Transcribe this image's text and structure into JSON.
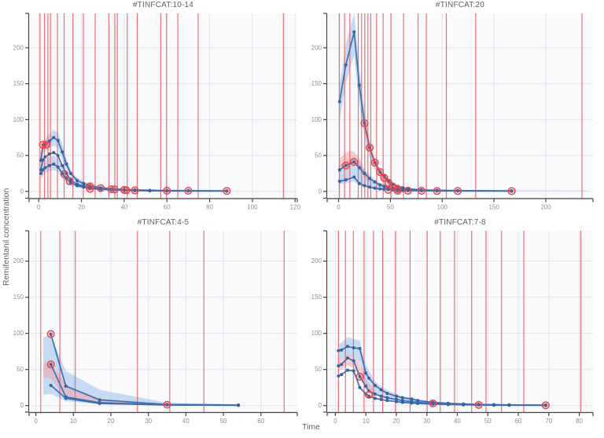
{
  "figure": {
    "ylabel": "Remifentanil concentration",
    "xlabel": "Time"
  },
  "colors": {
    "line_blue": "#3d6fae",
    "marker_blue": "#35649f",
    "ribbon_blue": "#8fbbea",
    "ribbon_pink": "#f2a0a4",
    "vline_red": "#ec5f63",
    "obs_red": "#e8474d",
    "red_line": "#e0393f",
    "grid": "#e4e5e9",
    "panel_bg": "#fafafc",
    "axis": "#444444",
    "tick_label": "#8a8f9a",
    "title": "#5e5e66"
  },
  "chart_data": [
    {
      "type": "line",
      "title": "#TINFCAT:10-14",
      "xlim": [
        -4.5,
        121
      ],
      "ylim": [
        -9.5,
        248
      ],
      "xticks": [
        0,
        20,
        40,
        60,
        80,
        100,
        120
      ],
      "yticks": [
        0,
        50,
        100,
        150,
        200
      ],
      "grid": true,
      "vlines": [
        0.6,
        2.7,
        4.3,
        5.5,
        8.8,
        11.9,
        16,
        20.9,
        26.4,
        32.8,
        35.6,
        36.8,
        41.4,
        46.1,
        57.1,
        59.8,
        65.1,
        74.6,
        114.5
      ],
      "ribbons": [
        {
          "color": "blue",
          "x": [
            1,
            2,
            3,
            5,
            7,
            9,
            11,
            13,
            15,
            18,
            21,
            24,
            29,
            34,
            40,
            45,
            52,
            60,
            70,
            88
          ],
          "upper": [
            52,
            70,
            74,
            80,
            86,
            82,
            66,
            46,
            30,
            19,
            14,
            11,
            7,
            5,
            3.5,
            3,
            2.5,
            2,
            1.5,
            1.2
          ],
          "lower": [
            33,
            52,
            56,
            60,
            64,
            60,
            44,
            30,
            19,
            11,
            8,
            6,
            4,
            2.5,
            1.5,
            1,
            0.8,
            0.5,
            0.4,
            0.3
          ]
        },
        {
          "color": "blue",
          "x": [
            1,
            2,
            3,
            5,
            7,
            9,
            11,
            13,
            15,
            18,
            21,
            24,
            29,
            34,
            40
          ],
          "upper": [
            33,
            40,
            44,
            48,
            50,
            46,
            34,
            24,
            16,
            11,
            8,
            6,
            4,
            3,
            2
          ],
          "lower": [
            18,
            22,
            25,
            28,
            30,
            27,
            19,
            13,
            8,
            5,
            4,
            3,
            2,
            1.2,
            0.8
          ]
        }
      ],
      "series": [
        {
          "name": "upper quantile",
          "x": [
            1,
            2,
            3,
            5,
            7,
            9,
            11,
            13,
            15,
            18,
            21,
            24,
            29,
            34,
            40,
            45,
            52,
            60,
            70,
            88
          ],
          "y": [
            43,
            65,
            65,
            70,
            75,
            71,
            55,
            38,
            25,
            15,
            11,
            8,
            5,
            3.5,
            2.5,
            2,
            1.5,
            1.2,
            1,
            0.8
          ]
        },
        {
          "name": "median",
          "x": [
            1,
            2,
            3,
            5,
            7,
            9,
            11,
            13,
            15,
            18,
            21,
            24,
            29,
            34,
            40,
            45,
            52,
            60,
            70,
            88
          ],
          "y": [
            30,
            44,
            48,
            52,
            54,
            50,
            36,
            25,
            16,
            10,
            7.5,
            5.5,
            3.5,
            2.5,
            1.8,
            1.4,
            1,
            0.8,
            0.6,
            0.5
          ]
        },
        {
          "name": "lower quantile",
          "x": [
            1,
            2,
            3,
            5,
            7,
            9,
            11,
            13,
            15,
            18,
            21,
            24,
            29,
            34,
            40,
            45,
            52,
            60,
            70,
            88
          ],
          "y": [
            25,
            30,
            33,
            36,
            38,
            34,
            25,
            18,
            12,
            8,
            6,
            4,
            3,
            2,
            1.5,
            1,
            0.8,
            0.6,
            0.5,
            0.4
          ]
        }
      ],
      "red_series": null,
      "observations": [
        [
          2,
          65
        ],
        [
          3.5,
          65
        ],
        [
          12,
          24
        ],
        [
          14.5,
          14
        ],
        [
          24,
          7
        ],
        [
          24,
          3.5
        ],
        [
          29,
          4.5
        ],
        [
          34,
          3
        ],
        [
          35.5,
          2.7
        ],
        [
          40,
          2
        ],
        [
          41,
          1.7
        ],
        [
          45,
          1.4
        ],
        [
          60,
          1
        ],
        [
          70,
          0.8
        ],
        [
          88,
          0.5
        ]
      ]
    },
    {
      "type": "line",
      "title": "#TINFCAT:20",
      "xlim": [
        -11,
        245.5
      ],
      "ylim": [
        -9.5,
        248
      ],
      "xticks": [
        0,
        50,
        100,
        150,
        200
      ],
      "yticks": [
        0,
        50,
        100,
        150,
        200
      ],
      "grid": true,
      "vlines": [
        0.8,
        5.8,
        10.9,
        19,
        22.2,
        25.3,
        28.3,
        31.1,
        36.7,
        43,
        50.6,
        62.7,
        76.7,
        84.7,
        104,
        132.3,
        234.9
      ],
      "ribbons": [
        {
          "color": "blue",
          "x": [
            1,
            7,
            15,
            20,
            25,
            30,
            35,
            40,
            44,
            48,
            52,
            57,
            62,
            67,
            80,
            95,
            115,
            167,
            240
          ],
          "upper": [
            148,
            205,
            248,
            172,
            112,
            72,
            47,
            32,
            25,
            18,
            13,
            9,
            7,
            5.5,
            3,
            2.5,
            2,
            1.5,
            1.2
          ],
          "lower": [
            98,
            150,
            190,
            122,
            75,
            47,
            30,
            20,
            15,
            11,
            8,
            5,
            4,
            3,
            1.5,
            1,
            0.8,
            0.4,
            0.2
          ]
        },
        {
          "color": "blue",
          "x": [
            1,
            7,
            15,
            20,
            25,
            30,
            35,
            40,
            48,
            57
          ],
          "upper": [
            36,
            42,
            48,
            40,
            31,
            23,
            17,
            12,
            7,
            4
          ],
          "lower": [
            10,
            11,
            14,
            8,
            6,
            4,
            3,
            2,
            1.5,
            1
          ]
        },
        {
          "color": "pink",
          "x": [
            1,
            7,
            11,
            15,
            20,
            25,
            30
          ],
          "upper": [
            46,
            53,
            57,
            55,
            46,
            30,
            20
          ],
          "lower": [
            32,
            37,
            40,
            38,
            30,
            19,
            12
          ]
        }
      ],
      "series": [
        {
          "name": "upper quantile",
          "x": [
            1,
            7,
            15,
            20,
            25,
            30,
            35,
            40,
            44,
            48,
            52,
            57,
            62,
            67,
            80,
            95,
            115,
            167
          ],
          "y": [
            125,
            176,
            222,
            148,
            95,
            61,
            40,
            27,
            21,
            15,
            10,
            7,
            5,
            3.5,
            2,
            1.5,
            1,
            0.8
          ]
        },
        {
          "name": "median",
          "x": [
            1,
            7,
            15,
            20,
            25,
            30,
            35,
            40,
            44,
            48,
            52,
            57,
            62,
            67,
            80,
            95,
            115,
            167
          ],
          "y": [
            30,
            36,
            41,
            33,
            25,
            18,
            13,
            9,
            7,
            5,
            4,
            3,
            2.5,
            2,
            1.5,
            1,
            0.8,
            0.5
          ]
        },
        {
          "name": "lower quantile",
          "x": [
            1,
            7,
            15,
            20,
            25,
            30,
            35,
            40,
            44,
            48,
            52,
            57,
            62,
            67,
            80,
            95,
            115,
            167
          ],
          "y": [
            14,
            16,
            20,
            11,
            8,
            6,
            4.5,
            3.5,
            3,
            2.5,
            2,
            1.5,
            1.2,
            1,
            0.8,
            0.6,
            0.5,
            0.4
          ]
        }
      ],
      "red_series": {
        "x": [
          25,
          30,
          35,
          40,
          44,
          48,
          52,
          57
        ],
        "y": [
          95,
          61,
          40,
          27,
          19,
          12,
          7,
          4
        ]
      },
      "observations": [
        [
          7,
          36
        ],
        [
          15,
          41
        ],
        [
          25,
          95
        ],
        [
          30,
          61
        ],
        [
          35,
          40
        ],
        [
          40,
          27
        ],
        [
          44,
          19
        ],
        [
          48,
          12
        ],
        [
          48,
          2
        ],
        [
          52,
          7
        ],
        [
          57,
          3
        ],
        [
          57,
          0.8
        ],
        [
          67,
          1
        ],
        [
          80,
          0.8
        ],
        [
          95,
          0.6
        ],
        [
          115,
          0.5
        ],
        [
          167,
          0.4
        ]
      ]
    },
    {
      "type": "line",
      "title": "#TINFCAT:4-5",
      "xlim": [
        -1.8,
        69.7
      ],
      "ylim": [
        -9,
        242
      ],
      "xticks": [
        0,
        10,
        20,
        30,
        40,
        50,
        60
      ],
      "yticks": [
        0,
        50,
        100,
        150,
        200
      ],
      "grid": true,
      "vlines": [
        1.3,
        6.4,
        10.5,
        27.1,
        35.7,
        44.8,
        66.2
      ],
      "ribbons": [
        {
          "color": "blue",
          "x": [
            2,
            4,
            8,
            17,
            35,
            54
          ],
          "upper": [
            95,
            97,
            48,
            22,
            4,
            1.5
          ],
          "lower": [
            15,
            16,
            6,
            2,
            0.3,
            0.1
          ]
        },
        {
          "color": "pink",
          "x": [
            2,
            4,
            8,
            17,
            35
          ],
          "upper": [
            60,
            60,
            28,
            10,
            1.5
          ],
          "lower": [
            38,
            38,
            10,
            3,
            0.2
          ]
        }
      ],
      "series": [
        {
          "name": "upper quantile",
          "x": [
            4,
            8,
            17,
            35,
            54
          ],
          "y": [
            99,
            27,
            8,
            1.5,
            0.8
          ]
        },
        {
          "name": "median",
          "x": [
            4,
            8,
            17,
            35,
            54
          ],
          "y": [
            57,
            12,
            4,
            1,
            0.5
          ]
        },
        {
          "name": "lower quantile",
          "x": [
            4,
            8,
            17,
            35,
            54
          ],
          "y": [
            28,
            10,
            3,
            0.8,
            0.3
          ]
        }
      ],
      "red_series": null,
      "observations": [
        [
          4,
          99
        ],
        [
          4,
          57
        ],
        [
          35,
          1.2
        ]
      ]
    },
    {
      "type": "line",
      "title": "#TINFCAT:7-8",
      "xlim": [
        -2.7,
        84.5
      ],
      "ylim": [
        -9,
        242
      ],
      "xticks": [
        0,
        10,
        20,
        30,
        40,
        50,
        60,
        70,
        80
      ],
      "yticks": [
        0,
        50,
        100,
        150,
        200
      ],
      "grid": true,
      "vlines": [
        1,
        3.3,
        5.9,
        9.4,
        12.5,
        15.5,
        19.7,
        24.5,
        30.1,
        34.4,
        39.1,
        44.7,
        49.4,
        54.5,
        61.8,
        80.5
      ],
      "ribbons": [
        {
          "color": "blue",
          "x": [
            1,
            2,
            4,
            6,
            8,
            10,
            13,
            17,
            22,
            27,
            32,
            42,
            57,
            69
          ],
          "upper": [
            85,
            87,
            95,
            92,
            90,
            56,
            33,
            21,
            13,
            9,
            6,
            3,
            1.5,
            1
          ],
          "lower": [
            62,
            64,
            70,
            67,
            60,
            28,
            15,
            8,
            5,
            3,
            2,
            1,
            0.4,
            0.2
          ]
        },
        {
          "color": "pink",
          "x": [
            1,
            2,
            4,
            6,
            8,
            10,
            13
          ],
          "upper": [
            62,
            64,
            72,
            68,
            58,
            36,
            20
          ],
          "lower": [
            48,
            50,
            56,
            52,
            40,
            22,
            11
          ]
        }
      ],
      "series": [
        {
          "name": "upper quantile",
          "x": [
            1,
            2,
            4,
            6,
            8,
            10,
            11,
            13,
            15,
            17,
            20,
            22,
            25,
            27,
            32,
            37,
            42,
            47,
            52,
            57,
            69
          ],
          "y": [
            76,
            77,
            82,
            80,
            79,
            45,
            38,
            28,
            22,
            17,
            13,
            11,
            9,
            7,
            4.5,
            3.2,
            2.3,
            1.7,
            1.3,
            1,
            0.8
          ]
        },
        {
          "name": "median",
          "x": [
            1,
            2,
            4,
            6,
            8,
            10,
            11,
            13,
            15,
            17,
            20,
            22,
            25,
            27,
            32,
            37,
            42,
            47,
            52,
            57,
            69
          ],
          "y": [
            55,
            57,
            66,
            62,
            40,
            27,
            20,
            16,
            13,
            11,
            8.5,
            7,
            5.5,
            4.5,
            3,
            2.2,
            1.6,
            1.2,
            0.9,
            0.7,
            0.4
          ]
        },
        {
          "name": "lower quantile",
          "x": [
            1,
            2,
            4,
            6,
            8,
            10,
            11,
            13,
            15,
            17,
            20,
            22,
            25,
            27,
            32,
            37,
            42,
            47,
            52,
            57,
            69
          ],
          "y": [
            41,
            43,
            49,
            48,
            25,
            16,
            13,
            10,
            8.5,
            7,
            5.5,
            4.5,
            3.5,
            3,
            2,
            1.5,
            1.1,
            0.8,
            0.6,
            0.5,
            0.3
          ]
        }
      ],
      "red_series": null,
      "observations": [
        [
          8,
          40
        ],
        [
          11,
          15
        ],
        [
          32,
          3
        ],
        [
          47,
          1
        ],
        [
          69,
          0.4
        ]
      ]
    }
  ]
}
